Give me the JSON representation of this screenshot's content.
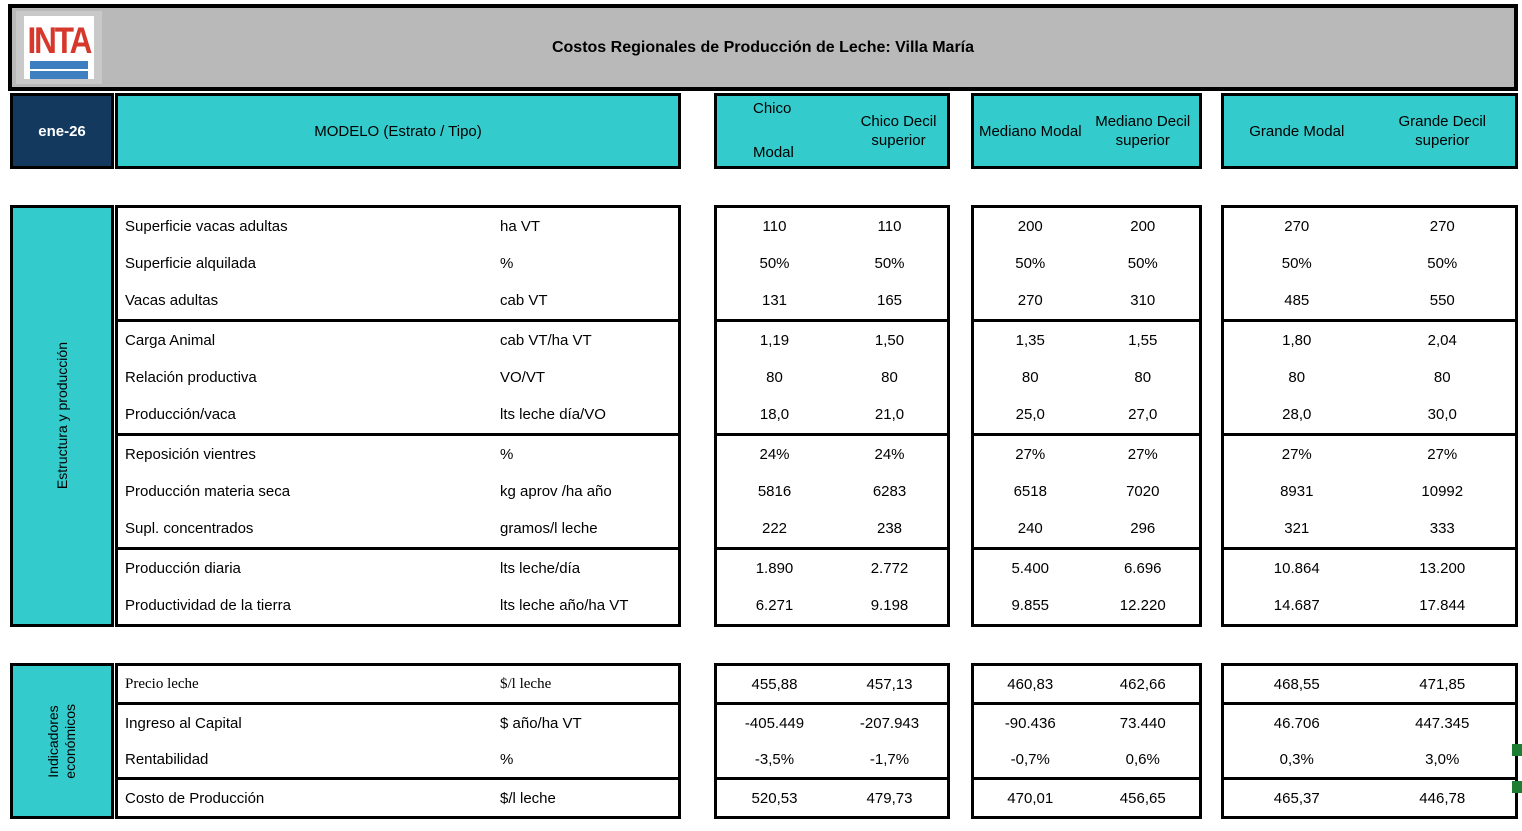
{
  "title_bar": {
    "title": "Costos Regionales de Producción de Leche: Villa María",
    "logo_text": "INTA"
  },
  "header": {
    "date": "ene-26",
    "model_label": "MODELO (Estrato / Tipo)",
    "groups": [
      {
        "col1": "Chico\nModal",
        "col2": "Chico Decil\nsuperior"
      },
      {
        "col1": "Mediano Modal",
        "col2": "Mediano Decil\nsuperior"
      },
      {
        "col1": "Grande Modal",
        "col2": "Grande Decil superior"
      }
    ]
  },
  "sections": [
    {
      "name": "Estructura y producción",
      "blocks": [
        {
          "rows": [
            {
              "label": "Superficie vacas adultas",
              "unit": "ha VT",
              "values": [
                "110",
                "110",
                "200",
                "200",
                "270",
                "270"
              ]
            },
            {
              "label": "Superficie alquilada",
              "unit": "%",
              "values": [
                "50%",
                "50%",
                "50%",
                "50%",
                "50%",
                "50%"
              ]
            },
            {
              "label": "Vacas adultas",
              "unit": "cab VT",
              "values": [
                "131",
                "165",
                "270",
                "310",
                "485",
                "550"
              ]
            }
          ]
        },
        {
          "rows": [
            {
              "label": "Carga Animal",
              "unit": "cab VT/ha VT",
              "values": [
                "1,19",
                "1,50",
                "1,35",
                "1,55",
                "1,80",
                "2,04"
              ]
            },
            {
              "label": "Relación productiva",
              "unit": "VO/VT",
              "values": [
                "80",
                "80",
                "80",
                "80",
                "80",
                "80"
              ]
            },
            {
              "label": "Producción/vaca",
              "unit": "lts leche día/VO",
              "values": [
                "18,0",
                "21,0",
                "25,0",
                "27,0",
                "28,0",
                "30,0"
              ]
            }
          ]
        },
        {
          "rows": [
            {
              "label": "Reposición vientres",
              "unit": "%",
              "values": [
                "24%",
                "24%",
                "27%",
                "27%",
                "27%",
                "27%"
              ]
            },
            {
              "label": "Producción materia seca",
              "unit": "kg aprov /ha año",
              "values": [
                "5816",
                "6283",
                "6518",
                "7020",
                "8931",
                "10992"
              ]
            },
            {
              "label": "Supl. concentrados",
              "unit": "gramos/l leche",
              "values": [
                "222",
                "238",
                "240",
                "296",
                "321",
                "333"
              ]
            }
          ]
        },
        {
          "rows": [
            {
              "label": "Producción diaria",
              "unit": "lts leche/día",
              "values": [
                "1.890",
                "2.772",
                "5.400",
                "6.696",
                "10.864",
                "13.200"
              ]
            },
            {
              "label": "Productividad de la tierra",
              "unit": "lts leche año/ha VT",
              "values": [
                "6.271",
                "9.198",
                "9.855",
                "12.220",
                "14.687",
                "17.844"
              ]
            }
          ]
        }
      ]
    },
    {
      "name": "Indicadores\neconómicos",
      "blocks": [
        {
          "rows": [
            {
              "label": "Precio leche",
              "unit": "$/l leche",
              "serif": true,
              "values": [
                "455,88",
                "457,13",
                "460,83",
                "462,66",
                "468,55",
                "471,85"
              ]
            }
          ]
        },
        {
          "rows": [
            {
              "label": "Ingreso al Capital",
              "unit": "$ año/ha VT",
              "values": [
                "-405.449",
                "-207.943",
                "-90.436",
                "73.440",
                "46.706",
                "447.345"
              ]
            },
            {
              "label": "Rentabilidad",
              "unit": "%",
              "values": [
                "-3,5%",
                "-1,7%",
                "-0,7%",
                "0,6%",
                "0,3%",
                "3,0%"
              ]
            }
          ]
        },
        {
          "rows": [
            {
              "label": "Costo de Producción",
              "unit": "$/l leche",
              "values": [
                "520,53",
                "479,73",
                "470,01",
                "456,65",
                "465,37",
                "446,78"
              ]
            }
          ]
        }
      ]
    }
  ],
  "colors": {
    "teal": "#33cbcb",
    "navy": "#14395f",
    "gray_bar": "#b9b9b9",
    "logo_red": "#d6382c",
    "logo_blue": "#3e7fc1",
    "marker_green": "#1d7d33"
  }
}
